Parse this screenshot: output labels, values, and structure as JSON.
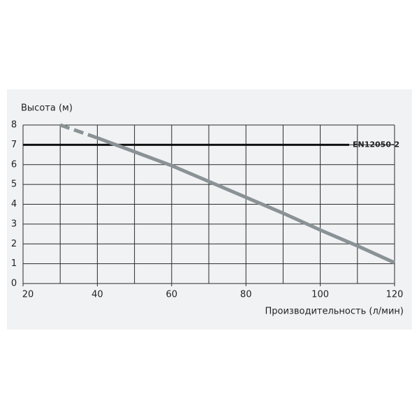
{
  "chart_data": {
    "type": "line",
    "y_label": "Высота (м)",
    "x_label": "Производительность (л/мин)",
    "xlim": [
      20,
      120
    ],
    "xticks": [
      20,
      40,
      60,
      80,
      100,
      120
    ],
    "ylim": [
      0,
      8
    ],
    "yticks": [
      0,
      1,
      2,
      3,
      4,
      5,
      6,
      7,
      8
    ],
    "grid_x_step": 10,
    "grid": true,
    "series": [
      {
        "color": "#8a9296",
        "line_style": "dashed",
        "x": [
          30,
          40
        ],
        "values": [
          8,
          7.35
        ]
      },
      {
        "color": "#8a9296",
        "line_style": "solid",
        "x": [
          40,
          45,
          60,
          70,
          80,
          90,
          100,
          110,
          120
        ],
        "values": [
          7.35,
          7.0,
          5.95,
          5.15,
          4.35,
          3.55,
          2.7,
          1.9,
          1.05
        ]
      }
    ],
    "reference_line": {
      "value": 7,
      "label": "EN12050-2",
      "color": "#111111",
      "label_color": "#2aa3b8"
    }
  }
}
